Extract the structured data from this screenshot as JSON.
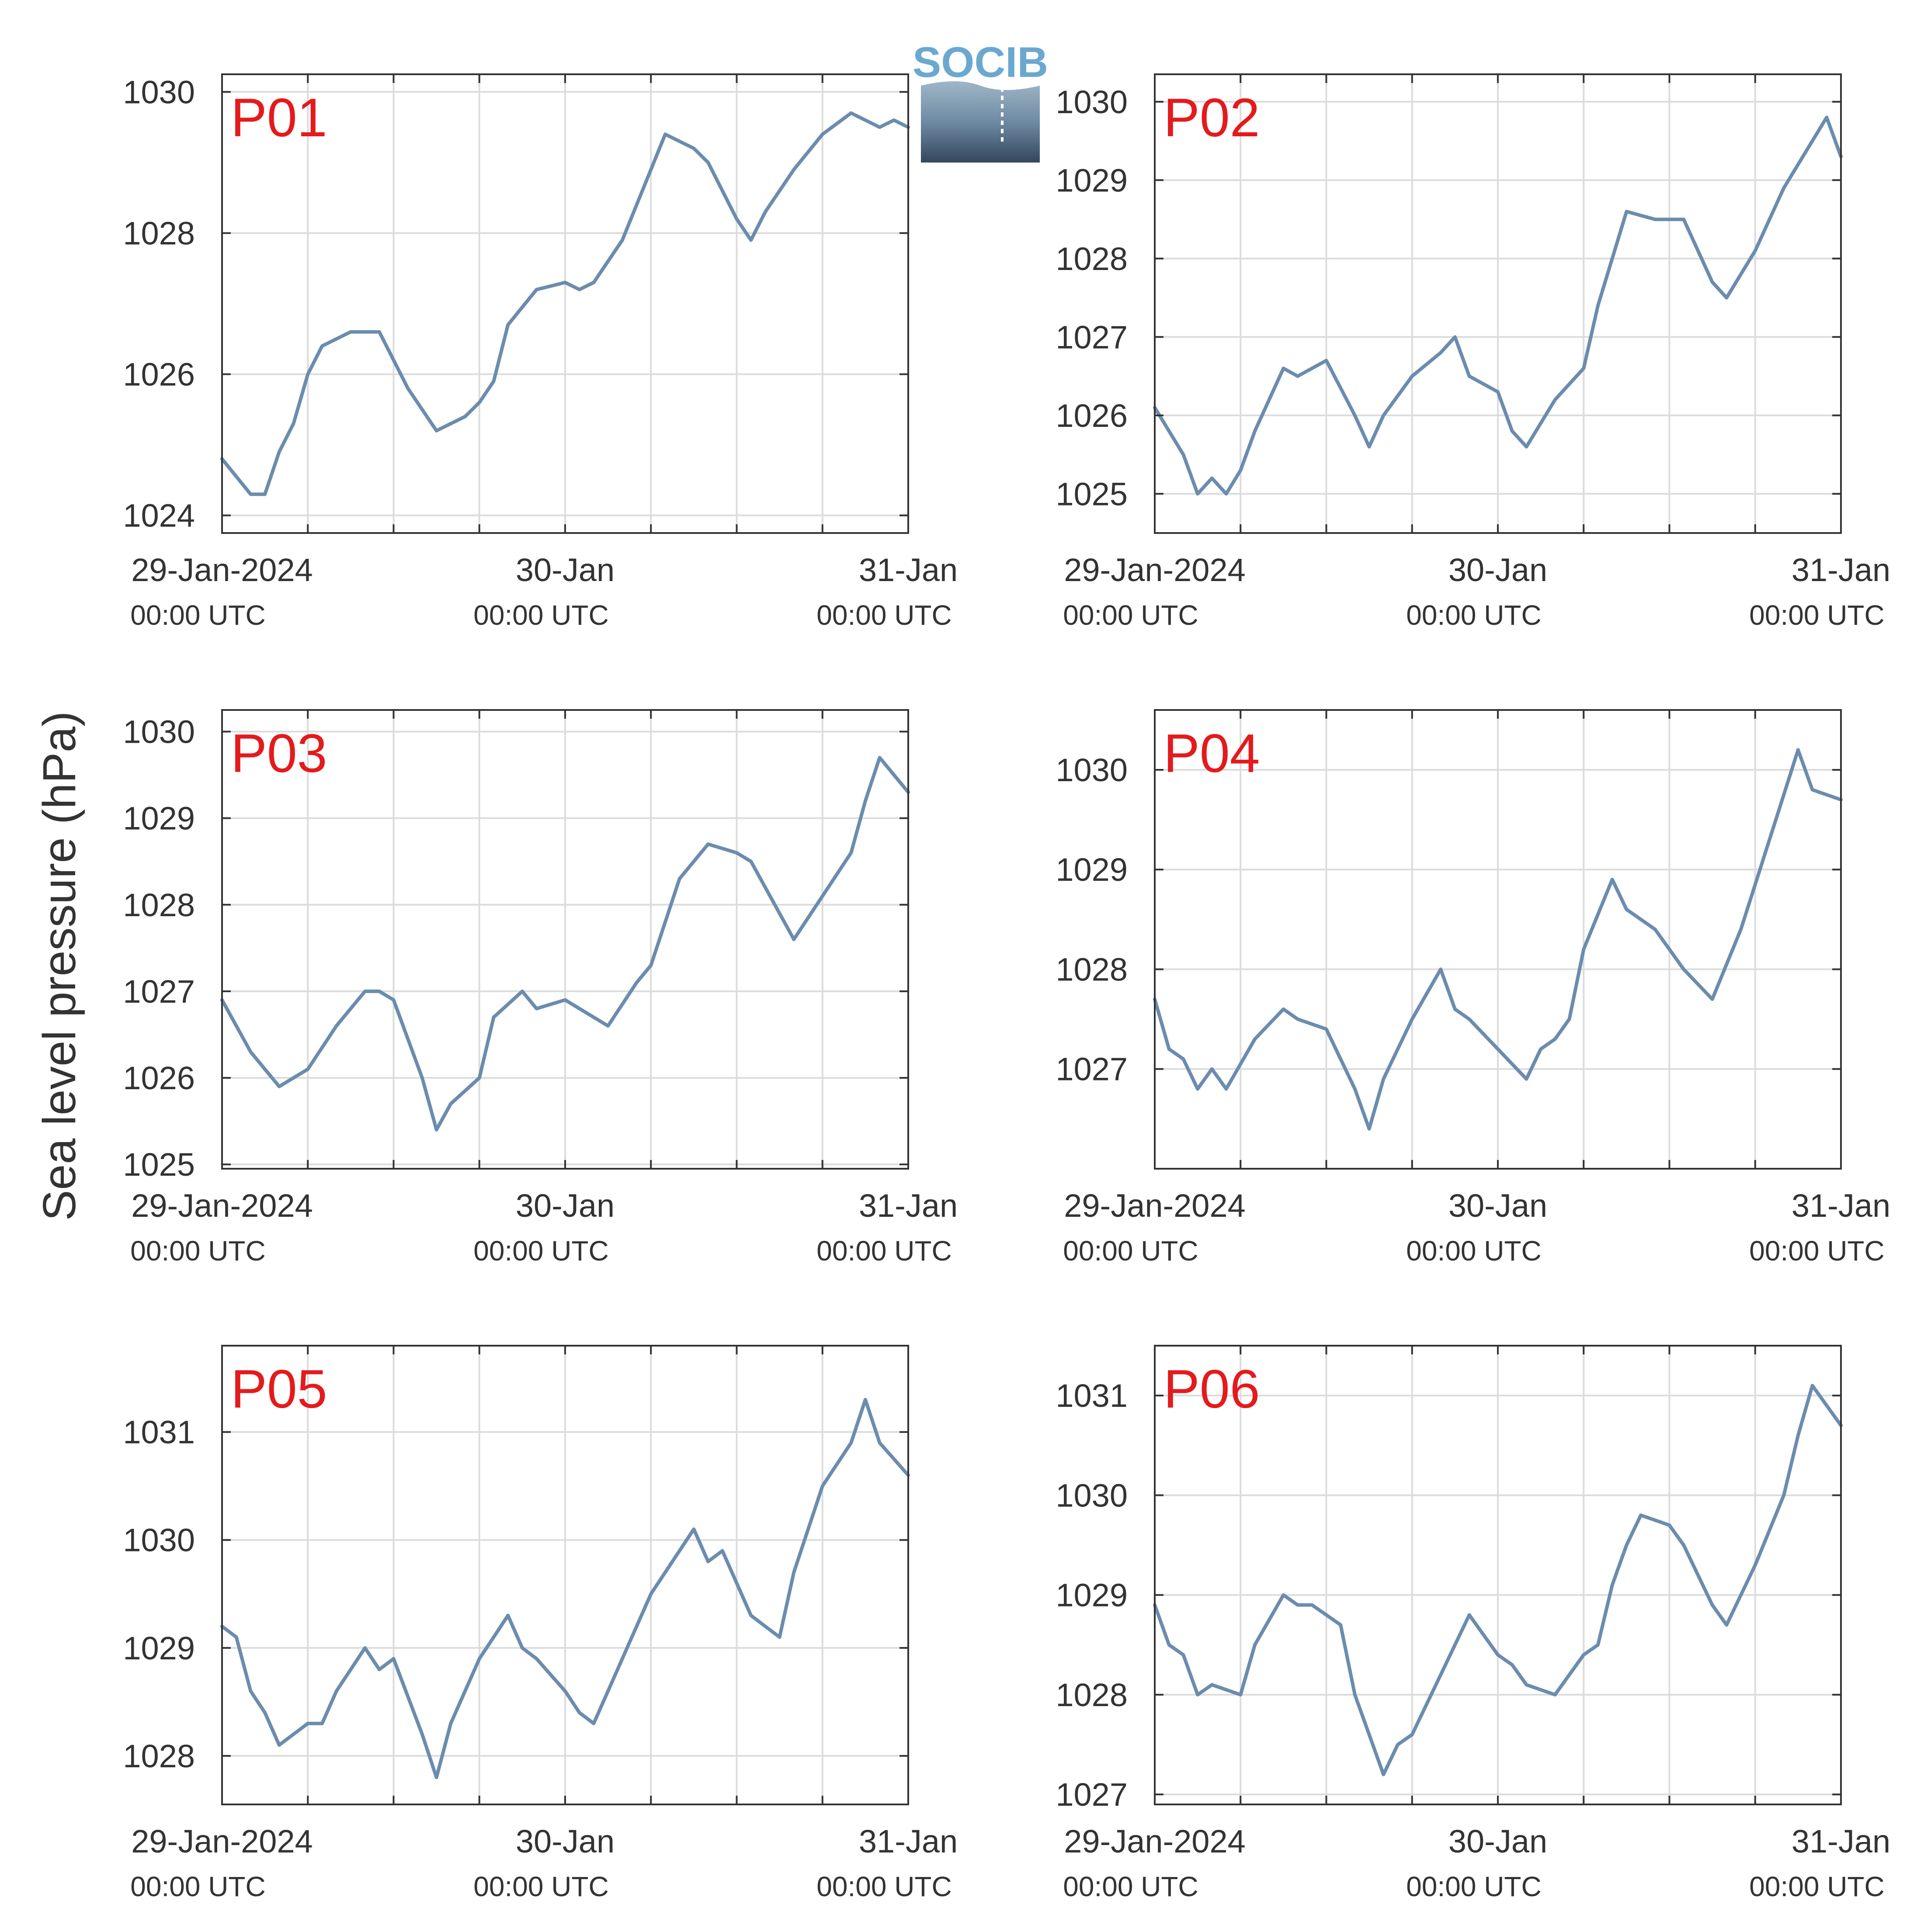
{
  "figure": {
    "ylabel": "Sea level pressure (hPa)",
    "panel_label_color": "#e41a1c",
    "line_color": "#6b8cae",
    "logo_text": "SOCIB"
  },
  "chart_data": [
    {
      "type": "line",
      "name": "P01",
      "x_range": [
        "2024-01-29T00:00",
        "2024-01-31T00:00"
      ],
      "x_ticks": [
        {
          "date": "2024-01-29T00:00",
          "label": "29-Jan-2024",
          "sublabel": "00:00 UTC"
        },
        {
          "date": "2024-01-30T00:00",
          "label": "30-Jan",
          "sublabel": "00:00 UTC"
        },
        {
          "date": "2024-01-31T00:00",
          "label": "31-Jan",
          "sublabel": "00:00 UTC"
        }
      ],
      "ylim": [
        1023.75,
        1030.25
      ],
      "y_ticks": [
        1024,
        1026,
        1028,
        1030
      ],
      "grid": true,
      "x": [
        "2024-01-29T00:00",
        "2024-01-29T02:00",
        "2024-01-29T03:00",
        "2024-01-29T04:00",
        "2024-01-29T05:00",
        "2024-01-29T06:00",
        "2024-01-29T07:00",
        "2024-01-29T09:00",
        "2024-01-29T11:00",
        "2024-01-29T13:00",
        "2024-01-29T15:00",
        "2024-01-29T17:00",
        "2024-01-29T18:00",
        "2024-01-29T19:00",
        "2024-01-29T20:00",
        "2024-01-29T22:00",
        "2024-01-30T00:00",
        "2024-01-30T01:00",
        "2024-01-30T02:00",
        "2024-01-30T04:00",
        "2024-01-30T06:00",
        "2024-01-30T07:00",
        "2024-01-30T09:00",
        "2024-01-30T10:00",
        "2024-01-30T12:00",
        "2024-01-30T13:00",
        "2024-01-30T14:00",
        "2024-01-30T16:00",
        "2024-01-30T18:00",
        "2024-01-30T20:00",
        "2024-01-30T22:00",
        "2024-01-30T23:00",
        "2024-01-31T00:00"
      ],
      "values": [
        1024.8,
        1024.3,
        1024.3,
        1024.9,
        1025.3,
        1026.0,
        1026.4,
        1026.6,
        1026.6,
        1025.8,
        1025.2,
        1025.4,
        1025.6,
        1025.9,
        1026.7,
        1027.2,
        1027.3,
        1027.2,
        1027.3,
        1027.9,
        1028.9,
        1029.4,
        1029.2,
        1029.0,
        1028.2,
        1027.9,
        1028.3,
        1028.9,
        1029.4,
        1029.7,
        1029.5,
        1029.6,
        1029.5
      ]
    },
    {
      "type": "line",
      "name": "P02",
      "x_range": [
        "2024-01-29T00:00",
        "2024-01-31T00:00"
      ],
      "x_ticks": [
        {
          "date": "2024-01-29T00:00",
          "label": "29-Jan-2024",
          "sublabel": "00:00 UTC"
        },
        {
          "date": "2024-01-30T00:00",
          "label": "30-Jan",
          "sublabel": "00:00 UTC"
        },
        {
          "date": "2024-01-31T00:00",
          "label": "31-Jan",
          "sublabel": "00:00 UTC"
        }
      ],
      "ylim": [
        1024.5,
        1030.35
      ],
      "y_ticks": [
        1025,
        1026,
        1027,
        1028,
        1029,
        1030
      ],
      "grid": true,
      "x": [
        "2024-01-29T00:00",
        "2024-01-29T02:00",
        "2024-01-29T03:00",
        "2024-01-29T04:00",
        "2024-01-29T05:00",
        "2024-01-29T06:00",
        "2024-01-29T07:00",
        "2024-01-29T08:00",
        "2024-01-29T09:00",
        "2024-01-29T10:00",
        "2024-01-29T12:00",
        "2024-01-29T14:00",
        "2024-01-29T15:00",
        "2024-01-29T16:00",
        "2024-01-29T18:00",
        "2024-01-29T20:00",
        "2024-01-29T21:00",
        "2024-01-29T22:00",
        "2024-01-30T00:00",
        "2024-01-30T01:00",
        "2024-01-30T02:00",
        "2024-01-30T04:00",
        "2024-01-30T06:00",
        "2024-01-30T07:00",
        "2024-01-30T09:00",
        "2024-01-30T11:00",
        "2024-01-30T13:00",
        "2024-01-30T15:00",
        "2024-01-30T16:00",
        "2024-01-30T18:00",
        "2024-01-30T20:00",
        "2024-01-30T22:00",
        "2024-01-30T23:00",
        "2024-01-31T00:00"
      ],
      "values": [
        1026.1,
        1025.5,
        1025.0,
        1025.2,
        1025.0,
        1025.3,
        1025.8,
        1026.2,
        1026.6,
        1026.5,
        1026.7,
        1026.0,
        1025.6,
        1026.0,
        1026.5,
        1026.8,
        1027.0,
        1026.5,
        1026.3,
        1025.8,
        1025.6,
        1026.2,
        1026.6,
        1027.4,
        1028.6,
        1028.5,
        1028.5,
        1027.7,
        1027.5,
        1028.1,
        1028.9,
        1029.5,
        1029.8,
        1029.3
      ]
    },
    {
      "type": "line",
      "name": "P03",
      "x_range": [
        "2024-01-29T00:00",
        "2024-01-31T00:00"
      ],
      "x_ticks": [
        {
          "date": "2024-01-29T00:00",
          "label": "29-Jan-2024",
          "sublabel": "00:00 UTC"
        },
        {
          "date": "2024-01-30T00:00",
          "label": "30-Jan",
          "sublabel": "00:00 UTC"
        },
        {
          "date": "2024-01-31T00:00",
          "label": "31-Jan",
          "sublabel": "00:00 UTC"
        }
      ],
      "ylim": [
        1024.95,
        1030.25
      ],
      "y_ticks": [
        1025,
        1026,
        1027,
        1028,
        1029,
        1030
      ],
      "grid": true,
      "x": [
        "2024-01-29T00:00",
        "2024-01-29T01:00",
        "2024-01-29T02:00",
        "2024-01-29T03:00",
        "2024-01-29T04:00",
        "2024-01-29T06:00",
        "2024-01-29T08:00",
        "2024-01-29T10:00",
        "2024-01-29T11:00",
        "2024-01-29T12:00",
        "2024-01-29T14:00",
        "2024-01-29T15:00",
        "2024-01-29T16:00",
        "2024-01-29T18:00",
        "2024-01-29T19:00",
        "2024-01-29T21:00",
        "2024-01-29T22:00",
        "2024-01-30T00:00",
        "2024-01-30T02:00",
        "2024-01-30T03:00",
        "2024-01-30T05:00",
        "2024-01-30T06:00",
        "2024-01-30T08:00",
        "2024-01-30T10:00",
        "2024-01-30T12:00",
        "2024-01-30T13:00",
        "2024-01-30T15:00",
        "2024-01-30T16:00",
        "2024-01-30T18:00",
        "2024-01-30T20:00",
        "2024-01-30T21:00",
        "2024-01-30T22:00",
        "2024-01-31T00:00"
      ],
      "values": [
        1026.9,
        1026.6,
        1026.3,
        1026.1,
        1025.9,
        1026.1,
        1026.6,
        1027.0,
        1027.0,
        1026.9,
        1026.0,
        1025.4,
        1025.7,
        1026.0,
        1026.7,
        1027.0,
        1026.8,
        1026.9,
        1026.7,
        1026.6,
        1027.1,
        1027.3,
        1028.3,
        1028.7,
        1028.6,
        1028.5,
        1027.9,
        1027.6,
        1028.1,
        1028.6,
        1029.2,
        1029.7,
        1029.3
      ]
    },
    {
      "type": "line",
      "name": "P04",
      "x_range": [
        "2024-01-29T00:00",
        "2024-01-31T00:00"
      ],
      "x_ticks": [
        {
          "date": "2024-01-29T00:00",
          "label": "29-Jan-2024",
          "sublabel": "00:00 UTC"
        },
        {
          "date": "2024-01-30T00:00",
          "label": "30-Jan",
          "sublabel": "00:00 UTC"
        },
        {
          "date": "2024-01-31T00:00",
          "label": "31-Jan",
          "sublabel": "00:00 UTC"
        }
      ],
      "ylim": [
        1026.0,
        1030.6
      ],
      "y_ticks": [
        1027,
        1028,
        1029,
        1030
      ],
      "grid": true,
      "x": [
        "2024-01-29T00:00",
        "2024-01-29T01:00",
        "2024-01-29T02:00",
        "2024-01-29T03:00",
        "2024-01-29T04:00",
        "2024-01-29T05:00",
        "2024-01-29T07:00",
        "2024-01-29T09:00",
        "2024-01-29T10:00",
        "2024-01-29T12:00",
        "2024-01-29T14:00",
        "2024-01-29T15:00",
        "2024-01-29T16:00",
        "2024-01-29T17:00",
        "2024-01-29T18:00",
        "2024-01-29T20:00",
        "2024-01-29T21:00",
        "2024-01-29T22:00",
        "2024-01-30T00:00",
        "2024-01-30T02:00",
        "2024-01-30T03:00",
        "2024-01-30T04:00",
        "2024-01-30T05:00",
        "2024-01-30T06:00",
        "2024-01-30T08:00",
        "2024-01-30T09:00",
        "2024-01-30T11:00",
        "2024-01-30T13:00",
        "2024-01-30T15:00",
        "2024-01-30T17:00",
        "2024-01-30T19:00",
        "2024-01-30T21:00",
        "2024-01-30T22:00",
        "2024-01-31T00:00"
      ],
      "values": [
        1027.7,
        1027.2,
        1027.1,
        1026.8,
        1027.0,
        1026.8,
        1027.3,
        1027.6,
        1027.5,
        1027.4,
        1026.8,
        1026.4,
        1026.9,
        1027.2,
        1027.5,
        1028.0,
        1027.6,
        1027.5,
        1027.2,
        1026.9,
        1027.2,
        1027.3,
        1027.5,
        1028.2,
        1028.9,
        1028.6,
        1028.4,
        1028.0,
        1027.7,
        1028.4,
        1029.3,
        1030.2,
        1029.8,
        1029.7
      ]
    },
    {
      "type": "line",
      "name": "P05",
      "x_range": [
        "2024-01-29T00:00",
        "2024-01-31T00:00"
      ],
      "x_ticks": [
        {
          "date": "2024-01-29T00:00",
          "label": "29-Jan-2024",
          "sublabel": "00:00 UTC"
        },
        {
          "date": "2024-01-30T00:00",
          "label": "30-Jan",
          "sublabel": "00:00 UTC"
        },
        {
          "date": "2024-01-31T00:00",
          "label": "31-Jan",
          "sublabel": "00:00 UTC"
        }
      ],
      "ylim": [
        1027.55,
        1031.8
      ],
      "y_ticks": [
        1028,
        1029,
        1030,
        1031
      ],
      "grid": true,
      "x": [
        "2024-01-29T00:00",
        "2024-01-29T01:00",
        "2024-01-29T02:00",
        "2024-01-29T03:00",
        "2024-01-29T04:00",
        "2024-01-29T06:00",
        "2024-01-29T07:00",
        "2024-01-29T08:00",
        "2024-01-29T10:00",
        "2024-01-29T11:00",
        "2024-01-29T12:00",
        "2024-01-29T14:00",
        "2024-01-29T15:00",
        "2024-01-29T16:00",
        "2024-01-29T17:00",
        "2024-01-29T18:00",
        "2024-01-29T20:00",
        "2024-01-29T21:00",
        "2024-01-29T22:00",
        "2024-01-30T00:00",
        "2024-01-30T01:00",
        "2024-01-30T02:00",
        "2024-01-30T04:00",
        "2024-01-30T06:00",
        "2024-01-30T08:00",
        "2024-01-30T09:00",
        "2024-01-30T10:00",
        "2024-01-30T11:00",
        "2024-01-30T13:00",
        "2024-01-30T14:00",
        "2024-01-30T15:00",
        "2024-01-30T16:00",
        "2024-01-30T18:00",
        "2024-01-30T20:00",
        "2024-01-30T21:00",
        "2024-01-30T22:00",
        "2024-01-31T00:00"
      ],
      "values": [
        1029.2,
        1029.1,
        1028.6,
        1028.4,
        1028.1,
        1028.3,
        1028.3,
        1028.6,
        1029.0,
        1028.8,
        1028.9,
        1028.2,
        1027.8,
        1028.3,
        1028.6,
        1028.9,
        1029.3,
        1029.0,
        1028.9,
        1028.6,
        1028.4,
        1028.3,
        1028.9,
        1029.5,
        1029.9,
        1030.1,
        1029.8,
        1029.9,
        1029.3,
        1029.2,
        1029.1,
        1029.7,
        1030.5,
        1030.9,
        1031.3,
        1030.9,
        1030.6
      ]
    },
    {
      "type": "line",
      "name": "P06",
      "x_range": [
        "2024-01-29T00:00",
        "2024-01-31T00:00"
      ],
      "x_ticks": [
        {
          "date": "2024-01-29T00:00",
          "label": "29-Jan-2024",
          "sublabel": "00:00 UTC"
        },
        {
          "date": "2024-01-30T00:00",
          "label": "30-Jan",
          "sublabel": "00:00 UTC"
        },
        {
          "date": "2024-01-31T00:00",
          "label": "31-Jan",
          "sublabel": "00:00 UTC"
        }
      ],
      "ylim": [
        1026.9,
        1031.5
      ],
      "y_ticks": [
        1027,
        1028,
        1029,
        1030,
        1031
      ],
      "grid": true,
      "x": [
        "2024-01-29T00:00",
        "2024-01-29T01:00",
        "2024-01-29T02:00",
        "2024-01-29T03:00",
        "2024-01-29T04:00",
        "2024-01-29T06:00",
        "2024-01-29T07:00",
        "2024-01-29T09:00",
        "2024-01-29T10:00",
        "2024-01-29T11:00",
        "2024-01-29T13:00",
        "2024-01-29T14:00",
        "2024-01-29T15:00",
        "2024-01-29T16:00",
        "2024-01-29T17:00",
        "2024-01-29T18:00",
        "2024-01-29T20:00",
        "2024-01-29T21:00",
        "2024-01-29T22:00",
        "2024-01-30T00:00",
        "2024-01-30T01:00",
        "2024-01-30T02:00",
        "2024-01-30T04:00",
        "2024-01-30T06:00",
        "2024-01-30T07:00",
        "2024-01-30T08:00",
        "2024-01-30T09:00",
        "2024-01-30T10:00",
        "2024-01-30T12:00",
        "2024-01-30T13:00",
        "2024-01-30T15:00",
        "2024-01-30T16:00",
        "2024-01-30T18:00",
        "2024-01-30T20:00",
        "2024-01-30T21:00",
        "2024-01-30T22:00",
        "2024-01-31T00:00"
      ],
      "values": [
        1028.9,
        1028.5,
        1028.4,
        1028.0,
        1028.1,
        1028.0,
        1028.5,
        1029.0,
        1028.9,
        1028.9,
        1028.7,
        1028.0,
        1027.6,
        1027.2,
        1027.5,
        1027.6,
        1028.2,
        1028.5,
        1028.8,
        1028.4,
        1028.3,
        1028.1,
        1028.0,
        1028.4,
        1028.5,
        1029.1,
        1029.5,
        1029.8,
        1029.7,
        1029.5,
        1028.9,
        1028.7,
        1029.3,
        1030.0,
        1030.6,
        1031.1,
        1030.7
      ]
    }
  ]
}
